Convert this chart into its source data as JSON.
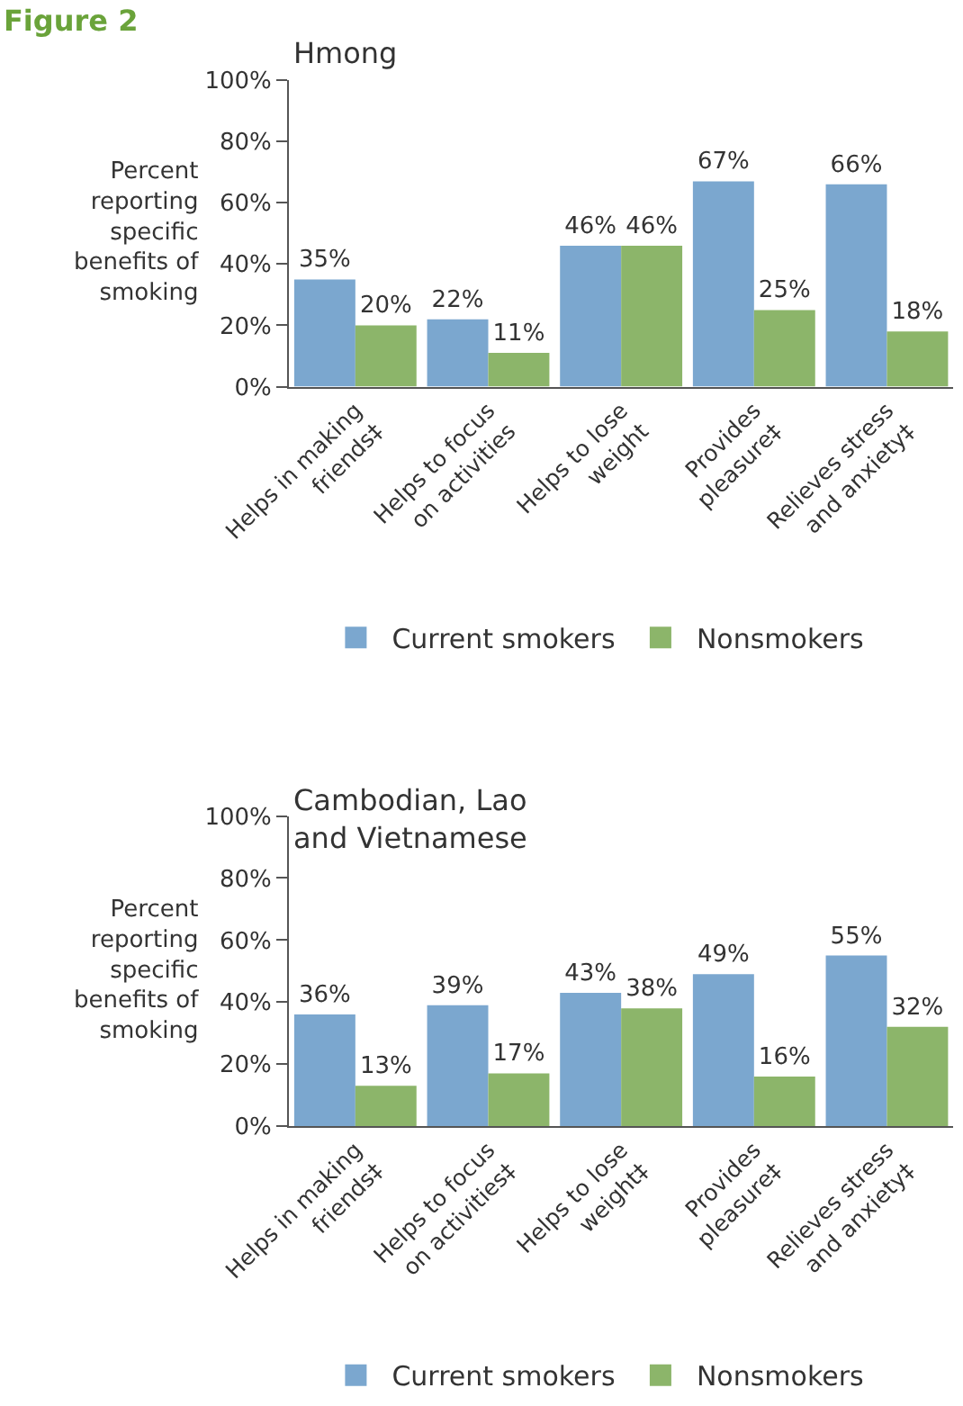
{
  "chart_data": [
    {
      "type": "bar",
      "title": "Hmong",
      "ylabel": "Percent\nreporting\nspecific\nbenefits of\nsmoking",
      "annotations": [
        "Figure 2"
      ],
      "categories": [
        "Helps in making\nfriends‡",
        "Helps to focus\non activities",
        "Helps to lose\nweight",
        "Provides\npleasure‡",
        "Relieves stress\nand anxiety‡"
      ],
      "series": [
        {
          "name": "Current smokers",
          "color": "#7ba7cf",
          "values": [
            35,
            22,
            46,
            67,
            66
          ],
          "value_labels": [
            "35%",
            "22%",
            "46%",
            "67%",
            "66%"
          ]
        },
        {
          "name": "Nonsmokers",
          "color": "#8cb56a",
          "values": [
            20,
            11,
            46,
            25,
            18
          ],
          "value_labels": [
            "20%",
            "11%",
            "46%",
            "25%",
            "18%"
          ]
        }
      ],
      "ylim": [
        0,
        100
      ],
      "yticks": [
        {
          "value": 0,
          "label": "0%"
        },
        {
          "value": 20,
          "label": "20%"
        },
        {
          "value": 40,
          "label": "40%"
        },
        {
          "value": 60,
          "label": "60%"
        },
        {
          "value": 80,
          "label": "80%"
        },
        {
          "value": 100,
          "label": "100%"
        }
      ],
      "legend": "bottom"
    },
    {
      "type": "bar",
      "title": "Cambodian, Lao\nand Vietnamese",
      "ylabel": "Percent\nreporting\nspecific\nbenefits of\nsmoking",
      "categories": [
        "Helps in making\nfriends‡",
        "Helps to focus\non activities‡",
        "Helps to lose\nweight‡",
        "Provides\npleasure‡",
        "Relieves stress\nand anxiety‡"
      ],
      "series": [
        {
          "name": "Current smokers",
          "color": "#7ba7cf",
          "values": [
            36,
            39,
            43,
            49,
            55
          ],
          "value_labels": [
            "36%",
            "39%",
            "43%",
            "49%",
            "55%"
          ]
        },
        {
          "name": "Nonsmokers",
          "color": "#8cb56a",
          "values": [
            13,
            17,
            38,
            16,
            32
          ],
          "value_labels": [
            "13%",
            "17%",
            "38%",
            "16%",
            "32%"
          ]
        }
      ],
      "ylim": [
        0,
        100
      ],
      "yticks": [
        {
          "value": 0,
          "label": "0%"
        },
        {
          "value": 20,
          "label": "20%"
        },
        {
          "value": 40,
          "label": "40%"
        },
        {
          "value": 60,
          "label": "60%"
        },
        {
          "value": 80,
          "label": "80%"
        },
        {
          "value": 100,
          "label": "100%"
        }
      ],
      "legend": "bottom"
    }
  ]
}
